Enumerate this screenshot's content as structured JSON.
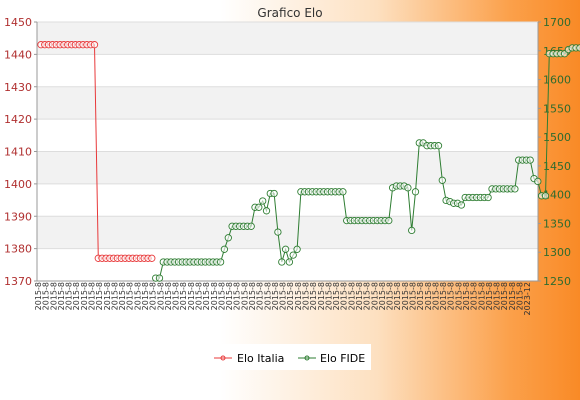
{
  "chart_data": {
    "type": "line",
    "title": "Grafico Elo",
    "grid": true,
    "legend_position": "bottom",
    "y_left": {
      "min": 1370,
      "max": 1450,
      "ticks": [
        "1370",
        "1380",
        "1390",
        "1400",
        "1410",
        "1420",
        "1430",
        "1440",
        "1450"
      ]
    },
    "y_right": {
      "min": 1250,
      "max": 1700,
      "ticks": [
        "1250",
        "1300",
        "1350",
        "1400",
        "1450",
        "1500",
        "1550",
        "1600",
        "1650",
        "1700"
      ]
    },
    "x_label_sample": "2015-8",
    "x_last_label": "2023-12",
    "series": [
      {
        "name": "Elo Italia",
        "axis": "left",
        "color": "#e8393a",
        "values": [
          1443,
          1443,
          1443,
          1443,
          1443,
          1443,
          1443,
          1443,
          1443,
          1443,
          1443,
          1443,
          1443,
          1443,
          1443,
          1377,
          1377,
          1377,
          1377,
          1377,
          1377,
          1377,
          1377,
          1377,
          1377,
          1377,
          1377,
          1377,
          1377,
          1377,
          null,
          null,
          null,
          null,
          null,
          null,
          null,
          null,
          null,
          null,
          null,
          null,
          null,
          null,
          null,
          null,
          null,
          null,
          null,
          null,
          null,
          null,
          null,
          null,
          null,
          null,
          null,
          null,
          null,
          null,
          null,
          null,
          null,
          null,
          null,
          null,
          null,
          null,
          null,
          null,
          null,
          null,
          null,
          null,
          null,
          null,
          null,
          null,
          null,
          null,
          null,
          null,
          null,
          null,
          null,
          null,
          null,
          null,
          null,
          null,
          null,
          null,
          null,
          null,
          null,
          null,
          null,
          null,
          null,
          null,
          null,
          null,
          null,
          null,
          null,
          null,
          null,
          null,
          null,
          null,
          null,
          null,
          null,
          null,
          null,
          null,
          null,
          null,
          null,
          null,
          null,
          null,
          null,
          null,
          null,
          null,
          null,
          null,
          null,
          null
        ]
      },
      {
        "name": "Elo FIDE",
        "axis": "right",
        "color": "#2e7d32",
        "values": [
          null,
          null,
          null,
          null,
          null,
          null,
          null,
          null,
          null,
          null,
          null,
          null,
          null,
          null,
          null,
          null,
          null,
          null,
          null,
          null,
          null,
          null,
          null,
          null,
          null,
          null,
          null,
          null,
          null,
          null,
          1255,
          1255,
          1283,
          1283,
          1283,
          1283,
          1283,
          1283,
          1283,
          1283,
          1283,
          1283,
          1283,
          1283,
          1283,
          1283,
          1283,
          1283,
          1305,
          1325,
          1345,
          1345,
          1345,
          1345,
          1345,
          1345,
          1378,
          1378,
          1389,
          1372,
          1402,
          1402,
          1335,
          1283,
          1305,
          1283,
          1295,
          1305,
          1405,
          1405,
          1405,
          1405,
          1405,
          1405,
          1405,
          1405,
          1405,
          1405,
          1405,
          1405,
          1355,
          1355,
          1355,
          1355,
          1355,
          1355,
          1355,
          1355,
          1355,
          1355,
          1355,
          1355,
          1412,
          1415,
          1415,
          1415,
          1412,
          1338,
          1405,
          1490,
          1490,
          1485,
          1485,
          1485,
          1485,
          1425,
          1390,
          1388,
          1385,
          1385,
          1382,
          1395,
          1395,
          1395,
          1395,
          1395,
          1395,
          1395,
          1410,
          1410,
          1410,
          1410,
          1410,
          1410,
          1410,
          1460,
          1460,
          1460,
          1460,
          1428,
          1423,
          1398,
          1398,
          1645,
          1645,
          1645,
          1645,
          1645,
          1652,
          1655,
          1655,
          1655,
          1655,
          1655,
          1655,
          1655,
          1660,
          1660,
          1660,
          1660,
          1660,
          1660,
          1660,
          1660,
          1660,
          1660
        ]
      }
    ]
  }
}
